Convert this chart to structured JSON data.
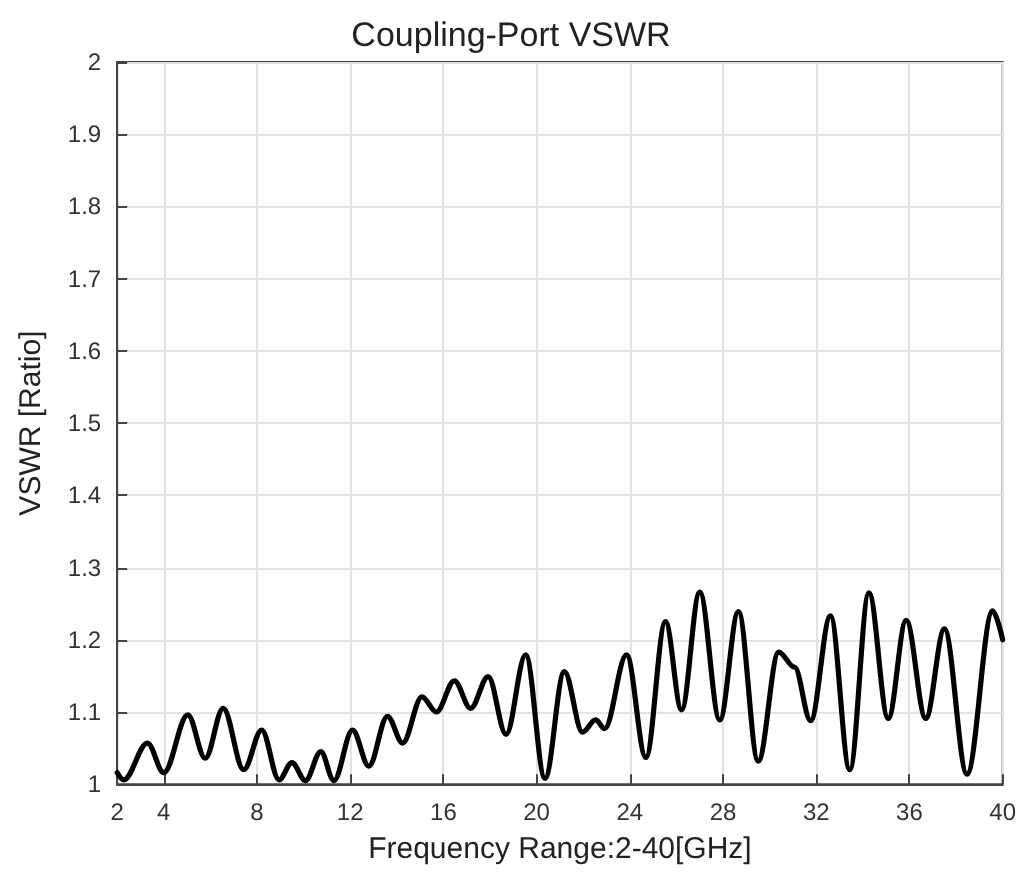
{
  "chart_data": {
    "type": "line",
    "title": "Coupling-Port VSWR",
    "xlabel": "Frequency Range:2-40[GHz]",
    "ylabel": "VSWR [Ratio]",
    "x": [
      2,
      2.28,
      3.3,
      4.0,
      5.03,
      5.78,
      6.55,
      7.43,
      8.2,
      8.95,
      9.5,
      10.08,
      10.74,
      11.3,
      12.1,
      12.8,
      13.6,
      14.25,
      15.08,
      15.7,
      16.47,
      17.17,
      17.92,
      18.69,
      19.53,
      20.36,
      21.19,
      21.97,
      22.53,
      22.92,
      23.86,
      24.69,
      25.53,
      26.22,
      27.0,
      27.86,
      28.66,
      29.51,
      30.39,
      31.07,
      31.76,
      32.61,
      33.44,
      34.26,
      35.09,
      35.86,
      36.7,
      37.5,
      38.47,
      39.57,
      40
    ],
    "series": [
      {
        "color": "#000000",
        "values": [
          1.016,
          1.006,
          1.057,
          1.016,
          1.096,
          1.036,
          1.105,
          1.02,
          1.075,
          1.006,
          1.03,
          1.005,
          1.045,
          1.005,
          1.075,
          1.025,
          1.094,
          1.057,
          1.121,
          1.1,
          1.143,
          1.105,
          1.149,
          1.069,
          1.179,
          1.008,
          1.156,
          1.072,
          1.089,
          1.077,
          1.179,
          1.037,
          1.225,
          1.103,
          1.266,
          1.089,
          1.239,
          1.032,
          1.183,
          1.162,
          1.088,
          1.233,
          1.02,
          1.265,
          1.091,
          1.227,
          1.091,
          1.215,
          1.014,
          1.24,
          1.2
        ]
      }
    ],
    "xlim": [
      2,
      40
    ],
    "xticks": [
      2,
      4,
      8,
      12,
      16,
      20,
      24,
      28,
      32,
      36,
      40
    ],
    "ylim": [
      1,
      2
    ],
    "yticks": [
      1,
      1.1,
      1.2,
      1.3,
      1.4,
      1.5,
      1.6,
      1.7,
      1.8,
      1.9,
      2
    ],
    "grid": true,
    "marker": "none",
    "line_style": "solid"
  }
}
